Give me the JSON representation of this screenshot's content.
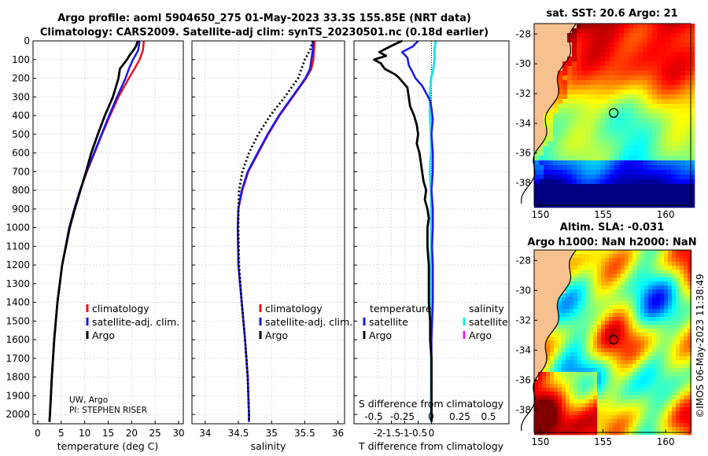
{
  "title": {
    "line1": "Argo profile: aoml 5904650_275 01-May-2023 33.3S 155.85E (NRT data)",
    "line2": "Climatology: CARS2009. Satellite-adj clim: synTS_20230501.nc (0.18d earlier)"
  },
  "credit": {
    "line1": "UW, Argo",
    "line2": "PI: STEPHEN RISER"
  },
  "watermark": "©IMOS 06-May-2023 11:38:49",
  "colors": {
    "climatology": "#e8141b",
    "satellite": "#1a1ae6",
    "argo": "#000000",
    "sat_salinity": "#1fe3e3",
    "argo_salinity": "#e020e0"
  },
  "chart_data": [
    {
      "id": "temperature",
      "type": "line",
      "xlabel": "temperature (deg C)",
      "ylabel": "",
      "xlim": [
        -1,
        31
      ],
      "ylim": [
        2050,
        0
      ],
      "xticks": [
        0,
        5,
        10,
        15,
        20,
        25,
        30
      ],
      "yticks": [
        0,
        100,
        200,
        300,
        400,
        500,
        600,
        700,
        800,
        900,
        1000,
        1100,
        1200,
        1300,
        1400,
        1500,
        1600,
        1700,
        1800,
        1900,
        2000
      ],
      "legend": [
        "climatology",
        "satellite-adj. clim.",
        "Argo"
      ],
      "series": [
        {
          "name": "climatology",
          "depth": [
            0,
            50,
            100,
            150,
            200,
            300,
            400,
            500,
            600,
            700,
            800,
            900,
            1000,
            1200,
            1400,
            1600,
            1800,
            2000,
            2040
          ],
          "values": [
            22.6,
            22.4,
            21.7,
            20.6,
            19.4,
            17.2,
            15.4,
            13.7,
            12.1,
            10.5,
            9.0,
            7.8,
            6.7,
            5.2,
            4.2,
            3.5,
            3.0,
            2.6,
            2.5
          ]
        },
        {
          "name": "satellite-adj. clim.",
          "depth": [
            0,
            50,
            100,
            150,
            200,
            300,
            400,
            500,
            600,
            700,
            800,
            900,
            1000,
            1200,
            1400,
            1600,
            1800,
            2000,
            2040
          ],
          "values": [
            21.7,
            21.4,
            20.3,
            19.4,
            18.7,
            16.9,
            15.2,
            13.6,
            12.0,
            10.4,
            9.0,
            7.8,
            6.7,
            5.2,
            4.2,
            3.5,
            3.0,
            2.6,
            2.5
          ]
        },
        {
          "name": "Argo",
          "depth": [
            0,
            25,
            50,
            75,
            100,
            150,
            200,
            300,
            400,
            500,
            600,
            700,
            800,
            900,
            1000,
            1200,
            1400,
            1600,
            1800,
            2000,
            2040
          ],
          "values": [
            21.3,
            21.0,
            20.4,
            19.6,
            19.0,
            17.5,
            17.2,
            16.0,
            14.3,
            12.8,
            11.4,
            10.3,
            9.1,
            7.9,
            6.8,
            5.2,
            4.2,
            3.5,
            3.0,
            2.6,
            2.5
          ]
        }
      ]
    },
    {
      "id": "salinity",
      "type": "line",
      "xlabel": "salinity",
      "xlim": [
        33.8,
        36.1
      ],
      "ylim": [
        2050,
        0
      ],
      "xticks": [
        34,
        34.5,
        35,
        35.5,
        36
      ],
      "legend": [
        "climatology",
        "satellite-adj. clim.",
        "Argo"
      ],
      "series": [
        {
          "name": "climatology",
          "depth": [
            0,
            50,
            100,
            150,
            200,
            300,
            400,
            500,
            600,
            700,
            800,
            900,
            1000,
            1200,
            1400,
            1600,
            1800,
            2000,
            2040
          ],
          "values": [
            35.65,
            35.64,
            35.63,
            35.6,
            35.52,
            35.32,
            35.12,
            34.95,
            34.8,
            34.65,
            34.56,
            34.5,
            34.49,
            34.5,
            34.55,
            34.6,
            34.64,
            34.66,
            34.66
          ]
        },
        {
          "name": "satellite-adj. clim.",
          "depth": [
            0,
            50,
            100,
            150,
            200,
            300,
            400,
            500,
            600,
            700,
            800,
            900,
            1000,
            1200,
            1400,
            1600,
            1800,
            2000,
            2040
          ],
          "values": [
            35.62,
            35.62,
            35.6,
            35.58,
            35.51,
            35.31,
            35.11,
            34.94,
            34.79,
            34.64,
            34.55,
            34.5,
            34.49,
            34.5,
            34.55,
            34.6,
            34.64,
            34.66,
            34.66
          ]
        },
        {
          "name": "Argo",
          "depth": [
            0,
            50,
            100,
            150,
            200,
            300,
            400,
            500,
            600,
            700,
            800,
            900,
            1000,
            1200,
            1400,
            1600,
            1800,
            2000,
            2040
          ],
          "values": [
            35.62,
            35.58,
            35.5,
            35.45,
            35.4,
            35.2,
            34.98,
            34.8,
            34.66,
            34.56,
            34.51,
            34.5,
            34.5,
            34.51,
            34.55,
            34.6,
            34.64,
            34.66,
            34.66
          ]
        }
      ]
    },
    {
      "id": "differences",
      "type": "line",
      "xlabel": "T difference from climatology",
      "xlabel_top": "S difference from climatology",
      "xlim": [
        -2.9,
        2.9
      ],
      "ylim": [
        2050,
        0
      ],
      "xticks_T": [
        -2,
        -1.5,
        -1,
        -0.5,
        0
      ],
      "xticks_T_labels": [
        "-2",
        "-1.5",
        "-1",
        "-0.5",
        "0"
      ],
      "xticks_S": [
        -0.5,
        -0.25,
        0,
        0.25,
        0.5
      ],
      "xticks_S_labels": [
        "-0.5",
        "-0.25",
        "0",
        "0.25",
        "0.5"
      ],
      "legend_left_title": "temperature",
      "legend_right_title": "salinity",
      "legend_left": [
        "satellite",
        "Argo"
      ],
      "legend_right": [
        "satellite",
        "Argo"
      ],
      "series": [
        {
          "name": "T satellite",
          "depth": [
            0,
            30,
            60,
            90,
            130,
            170,
            200,
            240,
            280,
            320,
            360,
            420,
            500,
            600,
            700,
            800,
            900,
            1000,
            1100,
            1200,
            1400,
            1600,
            1800,
            2000,
            2040
          ],
          "values": [
            -0.5,
            -0.7,
            -1.1,
            -0.9,
            -0.85,
            -0.7,
            -0.6,
            -0.35,
            -0.2,
            -0.05,
            0.0,
            0.05,
            0.0,
            0.05,
            0.05,
            0.0,
            0.05,
            0.05,
            0.02,
            0.05,
            0.05,
            0.0,
            0.0,
            0.0,
            0.0
          ]
        },
        {
          "name": "T Argo",
          "depth": [
            0,
            30,
            60,
            80,
            100,
            120,
            150,
            180,
            200,
            250,
            300,
            350,
            400,
            450,
            500,
            550,
            600,
            650,
            700,
            750,
            800,
            850,
            900,
            950,
            1000,
            1100,
            1200,
            1300,
            1400,
            1500,
            1600,
            1700,
            1800,
            1900,
            2000,
            2040
          ],
          "values": [
            -1.1,
            -1.55,
            -1.95,
            -1.7,
            -2.15,
            -1.9,
            -1.75,
            -1.35,
            -1.2,
            -0.9,
            -0.85,
            -0.8,
            -0.65,
            -0.55,
            -0.5,
            -0.55,
            -0.45,
            -0.4,
            -0.35,
            -0.3,
            -0.2,
            -0.25,
            -0.15,
            -0.1,
            -0.15,
            -0.15,
            -0.1,
            -0.1,
            -0.1,
            -0.05,
            -0.05,
            0.0,
            0.0,
            0.0,
            0.0,
            0.0
          ]
        },
        {
          "name": "S satellite",
          "depth": [
            0,
            50,
            100,
            150,
            200,
            300,
            400,
            500,
            600,
            700,
            800,
            900,
            1000,
            1200,
            1400,
            1600,
            1800,
            2000,
            2040
          ],
          "values": [
            0.04,
            0.03,
            0.03,
            0.02,
            0.0,
            -0.01,
            -0.01,
            0.0,
            0.0,
            -0.01,
            0.0,
            0.0,
            0.0,
            0.0,
            0.0,
            0.0,
            0.0,
            0.0,
            0.0
          ]
        },
        {
          "name": "S Argo",
          "depth": [],
          "values": []
        }
      ]
    },
    {
      "id": "sst-map",
      "type": "heatmap",
      "title": "sat. SST: 20.6 Argo: 21",
      "xlim": [
        149.5,
        162
      ],
      "ylim": [
        -39.5,
        -27.3
      ],
      "xticks": [
        150,
        155,
        160
      ],
      "yticks": [
        -28,
        -30,
        -32,
        -34,
        -36,
        -38
      ],
      "marker": {
        "lon": 155.85,
        "lat": -33.3
      }
    },
    {
      "id": "sla-map",
      "type": "heatmap",
      "title_line1": "Altim. SLA: -0.031",
      "title_line2": "Argo h1000: NaN h2000: NaN",
      "xlim": [
        149.5,
        162
      ],
      "ylim": [
        -39.5,
        -27.3
      ],
      "xticks": [
        150,
        155,
        160
      ],
      "yticks": [
        -28,
        -30,
        -32,
        -34,
        -36,
        -38
      ],
      "marker": {
        "lon": 155.85,
        "lat": -33.3
      }
    }
  ]
}
